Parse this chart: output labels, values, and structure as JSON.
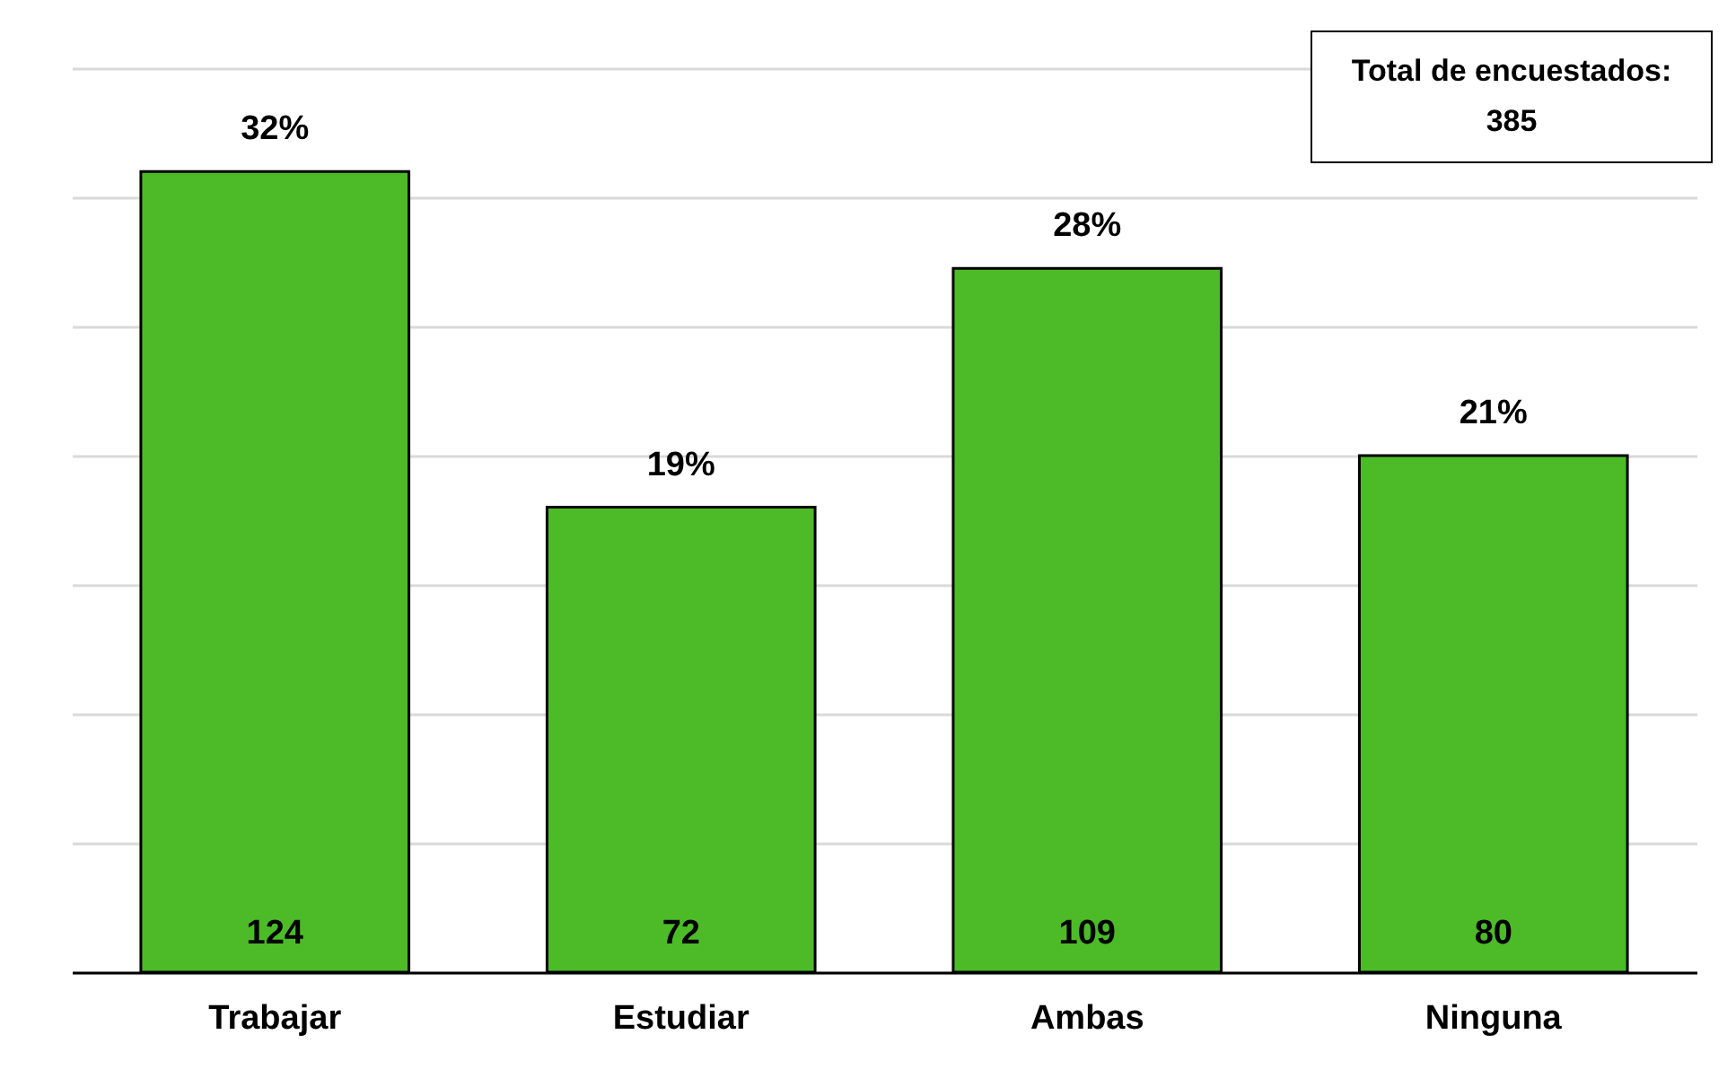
{
  "chart_data": {
    "type": "bar",
    "categories": [
      "Trabajar",
      "Estudiar",
      "Ambas",
      "Ninguna"
    ],
    "values": [
      124,
      72,
      109,
      80
    ],
    "color": "#4cbb27",
    "data_labels": true,
    "ylim": [
      0,
      140
    ],
    "yticks": [
      {
        "value": 0,
        "label": null
      },
      {
        "value": 20,
        "label": null
      },
      {
        "value": 40,
        "label": null
      },
      {
        "value": 60,
        "label": null
      },
      {
        "value": 80,
        "label": null
      },
      {
        "value": 100,
        "label": null
      },
      {
        "value": 120,
        "label": null
      },
      {
        "value": 140,
        "label": null
      }
    ],
    "grid": "y",
    "tick_labels": "x",
    "annotations": [
      {
        "text": "32%",
        "x": "Trabajar",
        "y": 124
      },
      {
        "text": "19%",
        "x": "Estudiar",
        "y": 72
      },
      {
        "text": "28%",
        "x": "Ambas",
        "y": 109
      },
      {
        "text": "21%",
        "x": "Ninguna",
        "y": 80
      },
      "Total de encuestados: 385"
    ]
  }
}
